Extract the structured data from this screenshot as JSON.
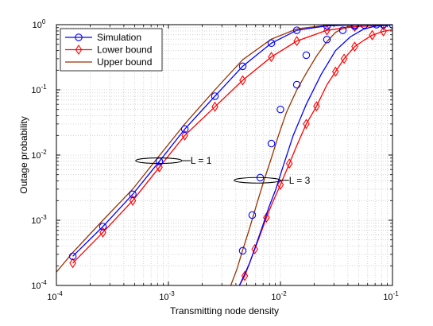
{
  "chart_data": {
    "type": "line",
    "title": "",
    "xlabel": "Transmitting node density",
    "ylabel": "Outage probability",
    "xscale": "log",
    "yscale": "log",
    "xlim": [
      0.0001,
      0.1
    ],
    "ylim": [
      0.0001,
      1
    ],
    "grid": true,
    "legend_position": "top-left",
    "x_ticks": [
      {
        "base": "10",
        "exp": "-4"
      },
      {
        "base": "10",
        "exp": "-3"
      },
      {
        "base": "10",
        "exp": "-2"
      },
      {
        "base": "10",
        "exp": "-1"
      }
    ],
    "y_ticks": [
      {
        "base": "10",
        "exp": "-4"
      },
      {
        "base": "10",
        "exp": "-3"
      },
      {
        "base": "10",
        "exp": "-2"
      },
      {
        "base": "10",
        "exp": "-1"
      },
      {
        "base": "10",
        "exp": "0"
      }
    ],
    "series": [
      {
        "name": "Simulation",
        "color": "#0000ff",
        "marker": "circle",
        "groups": [
          {
            "x": [
              0.00014,
              0.00026,
              0.00048,
              0.00083,
              0.0014,
              0.0026,
              0.0046,
              0.0083,
              0.014,
              0.026,
              0.046,
              0.083
            ],
            "y": [
              0.00028,
              0.0008,
              0.0025,
              0.008,
              0.025,
              0.08,
              0.23,
              0.52,
              0.82,
              0.96,
              0.99,
              1.0
            ]
          },
          {
            "x": [
              0.0043,
              0.0048,
              0.0053,
              0.006,
              0.0069,
              0.0079,
              0.0091,
              0.0105,
              0.013,
              0.017,
              0.023,
              0.031,
              0.042,
              0.055,
              0.07,
              0.1
            ],
            "y": [
              0.0001,
              0.00015,
              0.00022,
              0.0004,
              0.0008,
              0.0016,
              0.003,
              0.0065,
              0.02,
              0.06,
              0.17,
              0.4,
              0.65,
              0.85,
              0.95,
              0.99
            ]
          }
        ],
        "marker_groups": [
          {
            "x": [
              0.00014,
              0.00026,
              0.00048,
              0.00083,
              0.0014,
              0.0026,
              0.0046,
              0.0083,
              0.014,
              0.026,
              0.046,
              0.083
            ],
            "y": [
              0.00028,
              0.0008,
              0.0025,
              0.008,
              0.025,
              0.08,
              0.23,
              0.52,
              0.82,
              0.96,
              0.99,
              1.0
            ]
          },
          {
            "x": [
              0.0046,
              0.0056,
              0.0066,
              0.0083,
              0.01,
              0.014,
              0.017,
              0.026,
              0.036,
              0.046,
              0.056,
              0.072,
              0.1
            ],
            "y": [
              0.00034,
              0.0012,
              0.0045,
              0.015,
              0.05,
              0.12,
              0.34,
              0.59,
              0.82,
              0.94,
              0.99,
              1.0,
              1.0
            ]
          }
        ]
      },
      {
        "name": "Lower bound",
        "color": "#ff0000",
        "marker": "diamond",
        "groups": [
          {
            "x": [
              0.00014,
              0.00026,
              0.00048,
              0.00083,
              0.0014,
              0.0026,
              0.0046,
              0.0083,
              0.014,
              0.026,
              0.046,
              0.083
            ],
            "y": [
              0.00022,
              0.00065,
              0.002,
              0.0065,
              0.02,
              0.055,
              0.14,
              0.32,
              0.56,
              0.82,
              0.93,
              0.98
            ]
          },
          {
            "x": [
              0.0043,
              0.0048,
              0.0053,
              0.0059,
              0.0066,
              0.0075,
              0.0083,
              0.01,
              0.012,
              0.014,
              0.017,
              0.021,
              0.026,
              0.031,
              0.037,
              0.046,
              0.056,
              0.066,
              0.083,
              0.1
            ],
            "y": [
              0.0001,
              0.00014,
              0.00022,
              0.00036,
              0.0006,
              0.0011,
              0.0017,
              0.0035,
              0.0074,
              0.014,
              0.03,
              0.056,
              0.12,
              0.19,
              0.3,
              0.46,
              0.58,
              0.69,
              0.79,
              0.84
            ]
          }
        ],
        "marker_groups": [
          {
            "x": [
              0.00014,
              0.00026,
              0.00048,
              0.00083,
              0.0014,
              0.0026,
              0.0046,
              0.0083,
              0.014,
              0.026,
              0.046,
              0.083
            ],
            "y": [
              0.00022,
              0.00065,
              0.002,
              0.0065,
              0.02,
              0.055,
              0.14,
              0.32,
              0.56,
              0.82,
              0.93,
              0.98
            ]
          },
          {
            "x": [
              0.0048,
              0.0059,
              0.0075,
              0.01,
              0.012,
              0.017,
              0.021,
              0.031,
              0.037,
              0.046,
              0.066,
              0.083
            ],
            "y": [
              0.00014,
              0.00036,
              0.0011,
              0.0035,
              0.0074,
              0.03,
              0.056,
              0.19,
              0.3,
              0.46,
              0.69,
              0.79
            ]
          }
        ]
      },
      {
        "name": "Upper bound",
        "color": "#993300",
        "marker": "none",
        "groups": [
          {
            "x": [
              0.0001,
              0.00014,
              0.00026,
              0.00048,
              0.00083,
              0.0014,
              0.0026,
              0.0046,
              0.0083,
              0.014,
              0.026,
              0.046,
              0.083
            ],
            "y": [
              0.00016,
              0.00032,
              0.001,
              0.003,
              0.0098,
              0.03,
              0.1,
              0.29,
              0.6,
              0.86,
              0.98,
              1.0,
              1.0
            ]
          },
          {
            "x": [
              0.0036,
              0.0041,
              0.0046,
              0.0053,
              0.0061,
              0.0071,
              0.0083,
              0.0096,
              0.0113,
              0.014,
              0.017,
              0.021,
              0.026,
              0.031,
              0.037,
              0.046,
              0.1
            ],
            "y": [
              0.0001,
              0.00018,
              0.00035,
              0.00075,
              0.0017,
              0.004,
              0.009,
              0.02,
              0.045,
              0.1,
              0.18,
              0.33,
              0.55,
              0.76,
              0.9,
              0.98,
              1.0
            ]
          }
        ]
      }
    ],
    "legend": [
      {
        "label": "Simulation",
        "color": "#0000ff",
        "marker": "circle"
      },
      {
        "label": "Lower bound",
        "color": "#ff0000",
        "marker": "diamond"
      },
      {
        "label": "Upper bound",
        "color": "#993300",
        "marker": "none"
      }
    ],
    "annotations": [
      {
        "text": "L = 1",
        "x": 0.00082,
        "y": 0.0082
      },
      {
        "text": "L = 3",
        "x": 0.0062,
        "y": 0.0041
      }
    ]
  }
}
